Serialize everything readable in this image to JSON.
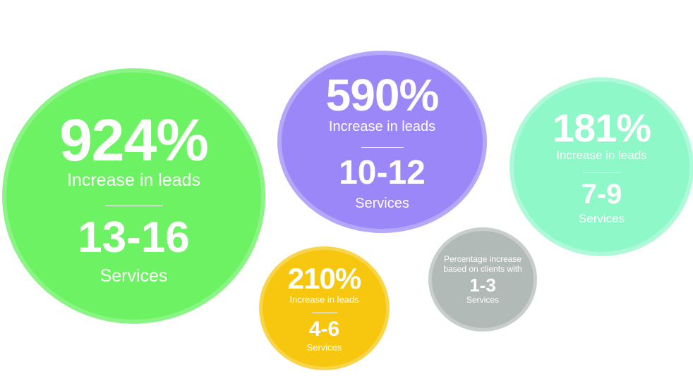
{
  "chart_data": {
    "type": "bubble",
    "colors": {
      "green": "#6cf262",
      "purple": "#9b87f7",
      "mint": "#8ef8c9",
      "yellow": "#f6c70e",
      "grey": "#b2bab8"
    },
    "bubbles": [
      {
        "value": "924%",
        "value_label": "Increase in leads",
        "range": "13-16",
        "range_label": "Services"
      },
      {
        "value": "590%",
        "value_label": "Increase in leads",
        "range": "10-12",
        "range_label": "Services"
      },
      {
        "value": "181%",
        "value_label": "Increase in leads",
        "range": "7-9",
        "range_label": "Services"
      },
      {
        "value": "210%",
        "value_label": "Increase in leads",
        "range": "4-6",
        "range_label": "Services"
      }
    ],
    "note": {
      "line1": "Percentage increase",
      "line2": "based on clients with",
      "range": "1-3",
      "range_label": "Services"
    }
  }
}
